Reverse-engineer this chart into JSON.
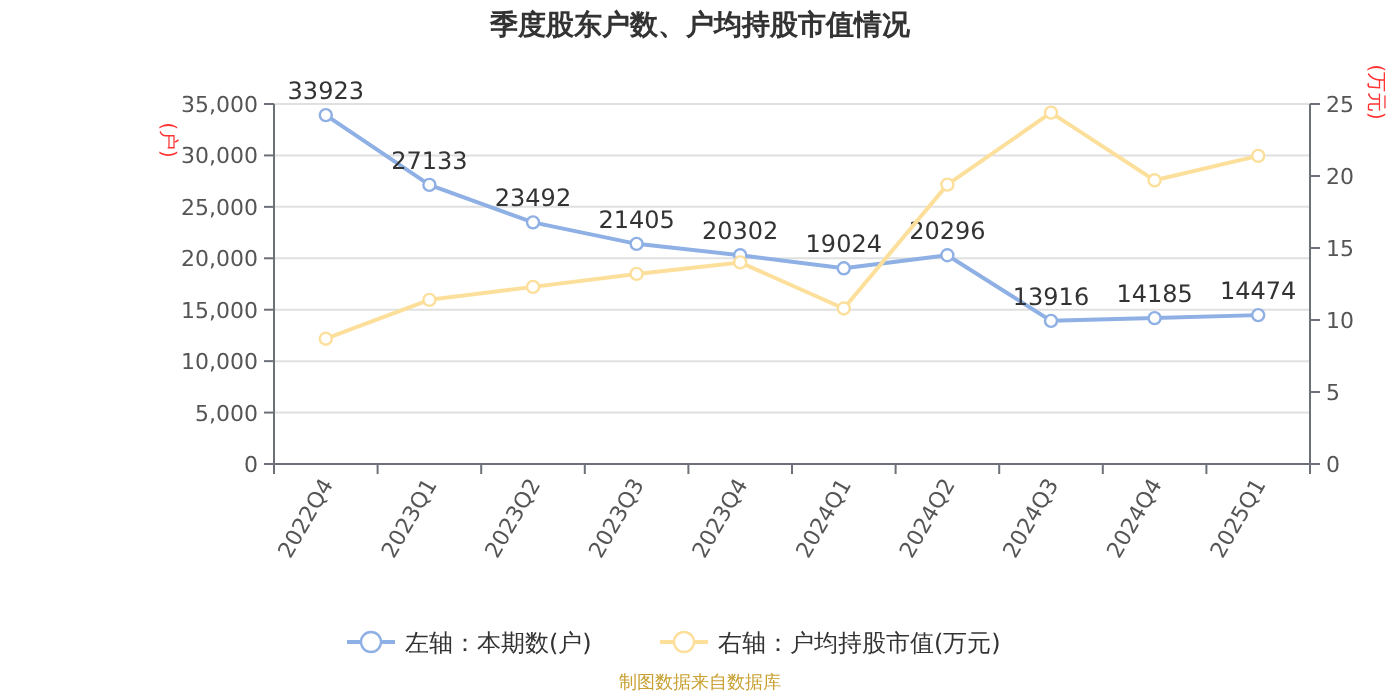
{
  "chart_data": {
    "type": "line",
    "title": "季度股东户数、户均持股市值情况",
    "ylabel": "(户)",
    "y2label": "(万元)",
    "categories": [
      "2022Q4",
      "2023Q1",
      "2023Q2",
      "2023Q3",
      "2023Q4",
      "2024Q1",
      "2024Q2",
      "2024Q3",
      "2024Q4",
      "2025Q1"
    ],
    "series": [
      {
        "name": "左轴：本期数(户)",
        "color": "#8fb0e4",
        "values": [
          33923,
          27133,
          23492,
          21405,
          20302,
          19024,
          20296,
          13916,
          14185,
          14474
        ],
        "value_labels": [
          "33923",
          "27133",
          "23492",
          "21405",
          "20302",
          "19024",
          "20296",
          "13916",
          "14185",
          "14474"
        ]
      },
      {
        "name": "右轴：户均持股市值(万元)",
        "color": "#fddf9c",
        "axis": "y2",
        "values": [
          8.7,
          11.4,
          12.3,
          13.2,
          14.0,
          10.8,
          19.4,
          24.4,
          19.7,
          21.4
        ]
      }
    ],
    "ylim": [
      0,
      35000
    ],
    "yticks": [
      {
        "value": 0,
        "label": "0"
      },
      {
        "value": 5000,
        "label": "5,000"
      },
      {
        "value": 10000,
        "label": "10,000"
      },
      {
        "value": 15000,
        "label": "15,000"
      },
      {
        "value": 20000,
        "label": "20,000"
      },
      {
        "value": 25000,
        "label": "25,000"
      },
      {
        "value": 30000,
        "label": "30,000"
      },
      {
        "value": 35000,
        "label": "35,000"
      }
    ],
    "y2lim": [
      0,
      25
    ],
    "y2ticks": [
      0,
      5,
      10,
      15,
      20,
      25
    ],
    "grid": "y",
    "legend": "bottom",
    "marker": "circle",
    "line_style": "solid",
    "annotations": [
      "制图数据来自数据库"
    ]
  }
}
